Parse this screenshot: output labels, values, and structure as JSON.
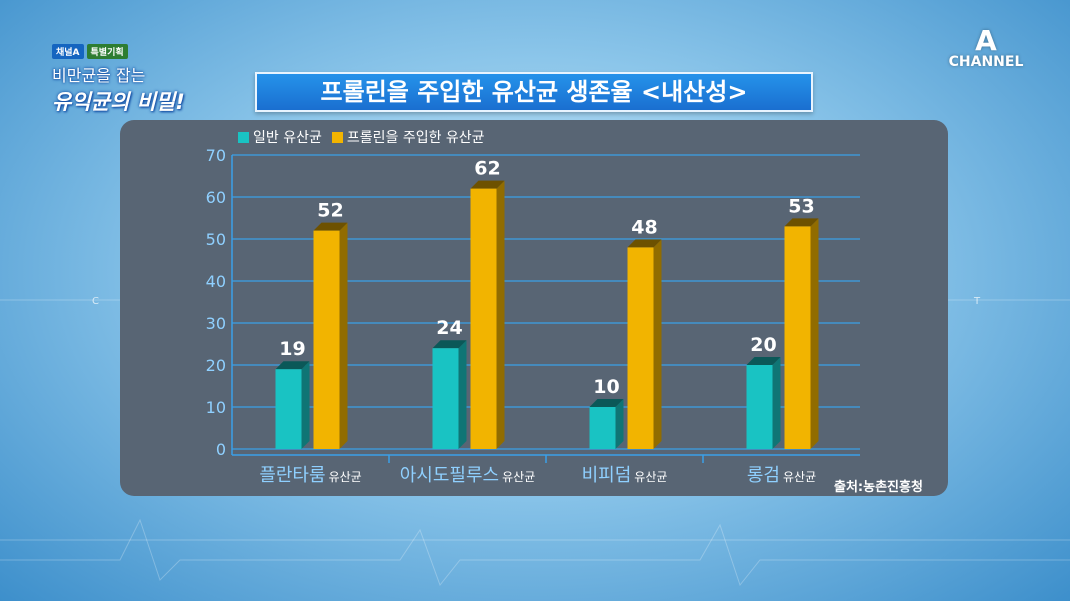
{
  "program": {
    "channel_tag": "채널A",
    "special_tag": "특별기획",
    "line1": "비만균을 잡는",
    "line2": "유익균의 비밀!"
  },
  "channel_logo": {
    "mark": "A",
    "text": "CHANNEL"
  },
  "side_marks": {
    "left": "C",
    "right": "T"
  },
  "chart_data": {
    "type": "bar",
    "title": "프롤린을 주입한 유산균 생존율 <내산성>",
    "categories": [
      {
        "name": "플란타룸",
        "suffix": "유산균"
      },
      {
        "name": "아시도필루스",
        "suffix": "유산균"
      },
      {
        "name": "비피덤",
        "suffix": "유산균"
      },
      {
        "name": "롱검",
        "suffix": "유산균"
      }
    ],
    "series": [
      {
        "name": "일반 유산균",
        "color": "#19c3c3",
        "values": [
          19,
          24,
          10,
          20
        ]
      },
      {
        "name": "프롤린을 주입한 유산균",
        "color": "#f2b400",
        "values": [
          52,
          62,
          48,
          53
        ]
      }
    ],
    "ylim": [
      0,
      70
    ],
    "yticks": [
      0,
      10,
      20,
      30,
      40,
      50,
      60,
      70
    ],
    "grid": true,
    "legend_position": "top-left",
    "source": "출처:농촌진흥청"
  }
}
